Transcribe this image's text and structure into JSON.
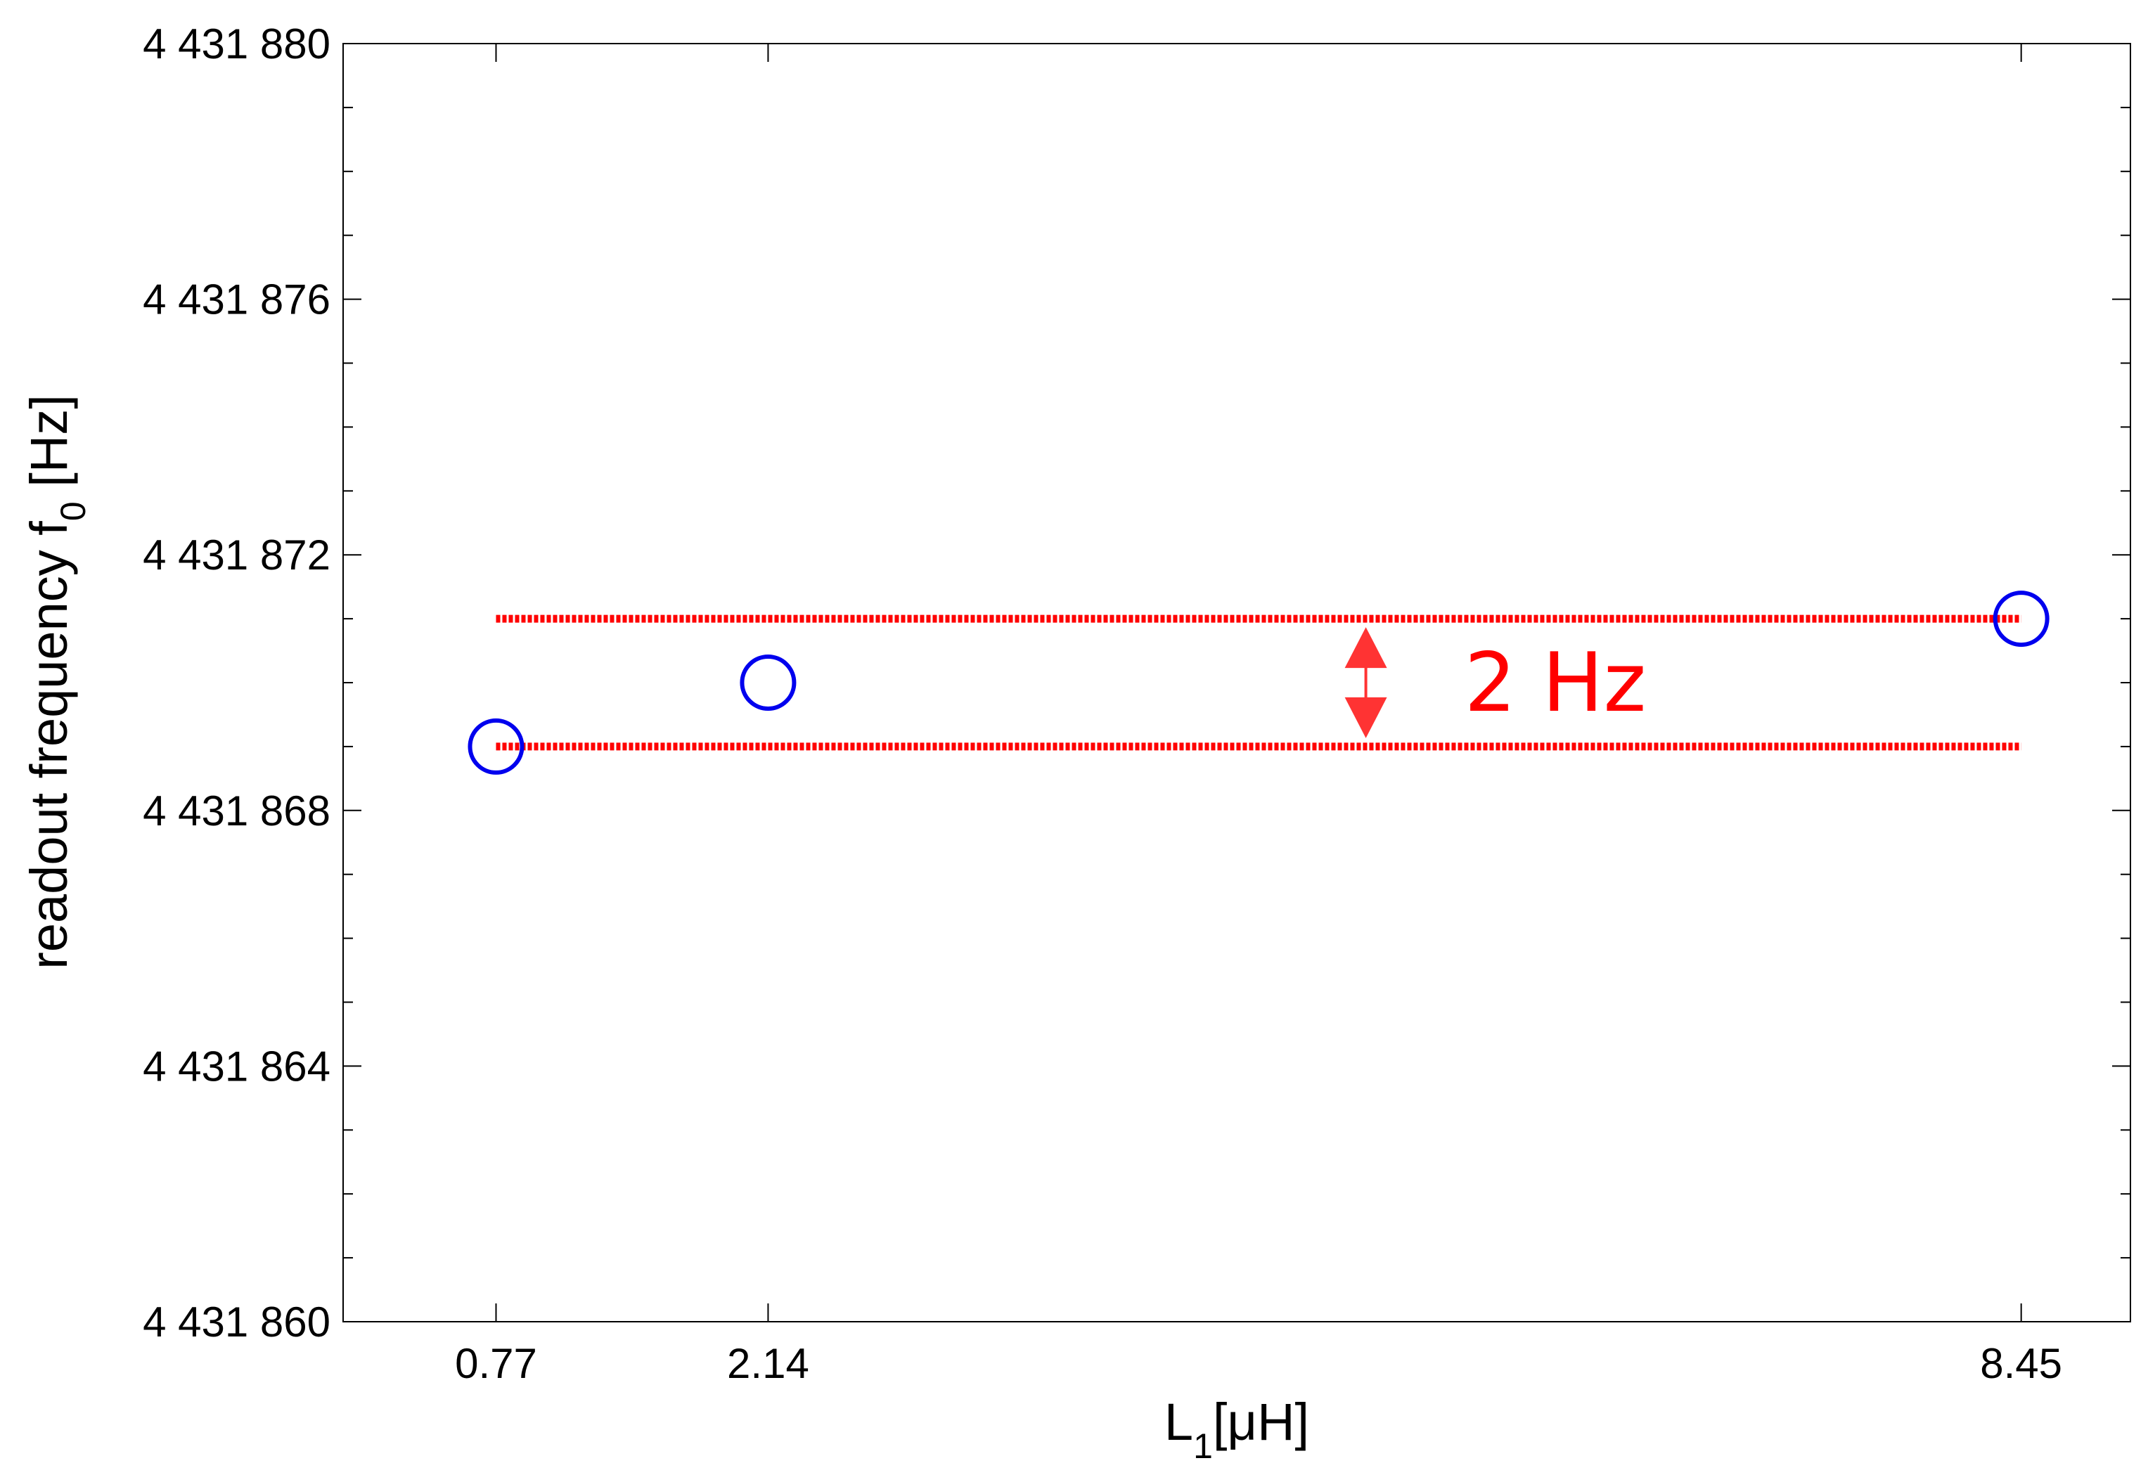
{
  "chart_data": {
    "type": "scatter",
    "title": "",
    "xlabel": {
      "main": "L",
      "sub": "1",
      "unit": "[μH]"
    },
    "ylabel": {
      "main": "readout frequency f",
      "sub": "0",
      "unit": " [Hz]"
    },
    "x_ticks": [
      {
        "value": 0.77,
        "label": "0.77"
      },
      {
        "value": 2.14,
        "label": "2.14"
      },
      {
        "value": 8.45,
        "label": "8.45"
      }
    ],
    "y_ticks": [
      {
        "value": 4431860,
        "label": "4 431 860"
      },
      {
        "value": 4431864,
        "label": "4 431 864"
      },
      {
        "value": 4431868,
        "label": "4 431 868"
      },
      {
        "value": 4431872,
        "label": "4 431 872"
      },
      {
        "value": 4431876,
        "label": "4 431 876"
      },
      {
        "value": 4431880,
        "label": "4 431 880"
      }
    ],
    "y_minor_step": 1,
    "xlim": [
      0,
      9.0
    ],
    "ylim": [
      4431860,
      4431880
    ],
    "grid": false,
    "series": [
      {
        "marker": "open-circle",
        "color": "#0000ee",
        "points": [
          {
            "x": 0.77,
            "y": 4431869
          },
          {
            "x": 2.14,
            "y": 4431870
          },
          {
            "x": 8.45,
            "y": 4431871
          }
        ]
      }
    ],
    "reference_lines": [
      {
        "y": 4431871,
        "x_from": 0.77,
        "x_to": 8.45,
        "style": "dotted",
        "color": "#ff0000"
      },
      {
        "y": 4431869,
        "x_from": 0.77,
        "x_to": 8.45,
        "style": "dotted",
        "color": "#ff0000"
      }
    ],
    "annotation": {
      "text": "2 Hz",
      "color": "#ff0000",
      "arrow_x": 5.15,
      "arrow_y_from": 4431869,
      "arrow_y_to": 4431871
    }
  }
}
